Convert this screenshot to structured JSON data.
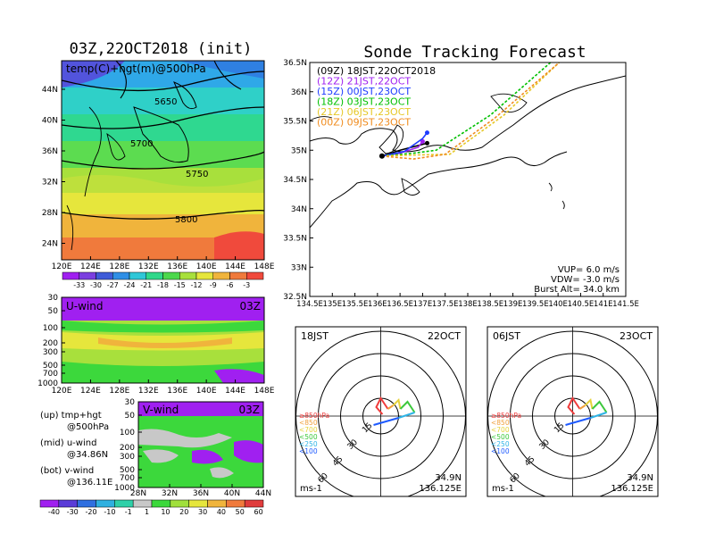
{
  "init_panel": {
    "title": "03Z,22OCT2018 (init)",
    "subtitle": "temp(C)+hgt(m)@500hPa",
    "lat_labels": [
      "44N",
      "40N",
      "36N",
      "32N",
      "28N",
      "24N"
    ],
    "lon_labels": [
      "120E",
      "124E",
      "128E",
      "132E",
      "136E",
      "140E",
      "144E",
      "148E"
    ],
    "contour_labels": [
      "5650",
      "5700",
      "5750",
      "5800"
    ],
    "colorbar_labels": [
      "-33",
      "-30",
      "-27",
      "-24",
      "-21",
      "-18",
      "-15",
      "-12",
      "-9",
      "-6",
      "-3"
    ],
    "colorbar_colors": [
      "#a020f0",
      "#7b3fe0",
      "#3f5bd8",
      "#2f8fe6",
      "#2fc7d8",
      "#2fd88a",
      "#4cd84c",
      "#a8e03c",
      "#e6e63c",
      "#f0b43c",
      "#f07a3c",
      "#f04a3c"
    ]
  },
  "uwind_panel": {
    "label": "U-wind",
    "time": "03Z",
    "y_labels": [
      "30",
      "50",
      "100",
      "200",
      "300",
      "500",
      "700",
      "1000"
    ],
    "x_labels": [
      "120E",
      "124E",
      "128E",
      "132E",
      "136E",
      "140E",
      "144E",
      "148E"
    ]
  },
  "vwind_panel": {
    "label": "V-wind",
    "time": "03Z",
    "y_labels": [
      "30",
      "50",
      "100",
      "200",
      "300",
      "500",
      "700",
      "1000"
    ],
    "x_labels": [
      "28N",
      "32N",
      "36N",
      "40N",
      "44N"
    ]
  },
  "legend": {
    "up_label": "(up) tmp+hgt",
    "up_value": "@500hPa",
    "mid_label": "(mid) u-wind",
    "mid_value": "@34.86N",
    "bot_label": "(bot) v-wind",
    "bot_value": "@136.11E"
  },
  "wind_colorbar": {
    "labels": [
      "-40",
      "-30",
      "-20",
      "-10",
      "-1",
      "1",
      "10",
      "20",
      "30",
      "40",
      "50",
      "60"
    ],
    "colors": [
      "#a020f0",
      "#5a3cd8",
      "#2f6fe0",
      "#2fb0e0",
      "#2fd0a8",
      "#c8c8c8",
      "#3cd83c",
      "#a0e03c",
      "#e6e63c",
      "#f0b43c",
      "#f07a3c",
      "#e03c3c"
    ]
  },
  "tracking": {
    "title": "Sonde Tracking Forecast",
    "y_labels": [
      "36.5N",
      "36N",
      "35.5N",
      "35N",
      "34.5N",
      "34N",
      "33.5N",
      "33N",
      "32.5N"
    ],
    "x_labels": [
      "134.5E",
      "135E",
      "135.5E",
      "136E",
      "136.5E",
      "137E",
      "137.5E",
      "138E",
      "138.5E",
      "139E",
      "139.5E",
      "140E",
      "140.5E",
      "141E",
      "141.5E"
    ],
    "launches": [
      {
        "code": "(09Z)",
        "time": "18JST,22OCT2018",
        "color": "#000000"
      },
      {
        "code": "(12Z)",
        "time": "21JST,22OCT",
        "color": "#a020f0"
      },
      {
        "code": "(15Z)",
        "time": "00JST,23OCT",
        "color": "#1e3cff"
      },
      {
        "code": "(18Z)",
        "time": "03JST,23OCT",
        "color": "#00c000"
      },
      {
        "code": "(21Z)",
        "time": "06JST,23OCT",
        "color": "#e6c828"
      },
      {
        "code": "(00Z)",
        "time": "09JST,23OCT",
        "color": "#f08c1e"
      }
    ],
    "params": {
      "vup": "VUP= 6.0 m/s",
      "vdw": "VDW= -3.0 m/s",
      "burst": "Burst Alt= 34.0 km"
    }
  },
  "hodograph_left": {
    "time_label": "18JST",
    "date_label": "22OCT",
    "ring_labels": [
      "15",
      "30",
      "45",
      "60"
    ],
    "pressure_legend": [
      {
        "text": "≥850hPa",
        "color": "#f03c3c"
      },
      {
        "text": "<850",
        "color": "#f0a03c"
      },
      {
        "text": "<700",
        "color": "#e6d23c"
      },
      {
        "text": "<500",
        "color": "#3cc83c"
      },
      {
        "text": "<250",
        "color": "#2fb4e6"
      },
      {
        "text": "<100",
        "color": "#1e5aff"
      }
    ],
    "unit": "ms-1",
    "lat": "34.9N",
    "lon": "136.125E"
  },
  "hodograph_right": {
    "time_label": "06JST",
    "date_label": "23OCT",
    "ring_labels": [
      "15",
      "30",
      "45",
      "60"
    ],
    "pressure_legend": [
      {
        "text": "≥850hPa",
        "color": "#f03c3c"
      },
      {
        "text": "<850",
        "color": "#f0a03c"
      },
      {
        "text": "<700",
        "color": "#e6d23c"
      },
      {
        "text": "<500",
        "color": "#3cc83c"
      },
      {
        "text": "<250",
        "color": "#2fb4e6"
      },
      {
        "text": "<100",
        "color": "#1e5aff"
      }
    ],
    "unit": "ms-1",
    "lat": "34.9N",
    "lon": "136.125E"
  },
  "chart_data": [
    {
      "type": "heatmap",
      "title": "03Z,22OCT2018 (init)",
      "subtitle": "temp(C)+hgt(m)@500hPa",
      "x_ticks": [
        "120E",
        "124E",
        "128E",
        "132E",
        "136E",
        "140E",
        "144E",
        "148E"
      ],
      "y_ticks": [
        "24N",
        "28N",
        "32N",
        "36N",
        "40N",
        "44N"
      ],
      "contours": [
        5650,
        5700,
        5750,
        5800
      ],
      "colorbar": [
        -33,
        -30,
        -27,
        -24,
        -21,
        -18,
        -15,
        -12,
        -9,
        -6,
        -3
      ]
    },
    {
      "type": "heatmap",
      "title": "U-wind",
      "time": "03Z",
      "x_ticks": [
        "120E",
        "124E",
        "128E",
        "132E",
        "136E",
        "140E",
        "144E",
        "148E"
      ],
      "y_ticks_hPa": [
        30,
        50,
        100,
        200,
        300,
        500,
        700,
        1000
      ]
    },
    {
      "type": "heatmap",
      "title": "V-wind",
      "time": "03Z",
      "x_ticks": [
        "28N",
        "32N",
        "36N",
        "40N",
        "44N"
      ],
      "y_ticks_hPa": [
        30,
        50,
        100,
        200,
        300,
        500,
        700,
        1000
      ],
      "colorbar": [
        -40,
        -30,
        -20,
        -10,
        -1,
        1,
        10,
        20,
        30,
        40,
        50,
        60
      ]
    },
    {
      "type": "line",
      "title": "Sonde Tracking Forecast",
      "xlim": [
        134.5,
        141.5
      ],
      "ylim": [
        32.5,
        36.5
      ],
      "series": [
        {
          "name": "(09Z) 18JST,22OCT2018",
          "x": [
            136.1,
            136.5,
            136.9,
            137.1
          ],
          "y": [
            34.9,
            35.0,
            35.08,
            35.12
          ]
        },
        {
          "name": "(12Z) 21JST,22OCT",
          "x": [
            136.1,
            136.5,
            136.9,
            137.0
          ],
          "y": [
            34.9,
            34.95,
            35.05,
            35.15
          ]
        },
        {
          "name": "(15Z) 00JST,23OCT",
          "x": [
            136.1,
            136.6,
            137.0,
            137.1
          ],
          "y": [
            34.9,
            34.98,
            35.2,
            35.3
          ]
        },
        {
          "name": "(18Z) 03JST,23OCT",
          "x": [
            136.1,
            136.8,
            137.3,
            138.5,
            140.5
          ],
          "y": [
            34.9,
            34.95,
            35.0,
            35.6,
            36.95
          ]
        },
        {
          "name": "(21Z) 06JST,23OCT",
          "x": [
            136.1,
            136.9,
            137.6,
            138.8,
            140.5
          ],
          "y": [
            34.9,
            34.92,
            34.93,
            35.6,
            36.85
          ]
        },
        {
          "name": "(00Z) 09JST,23OCT",
          "x": [
            136.1,
            136.8,
            137.5,
            138.6,
            140.4
          ],
          "y": [
            34.9,
            34.85,
            34.93,
            35.55,
            36.75
          ]
        }
      ],
      "annotations": [
        "VUP= 6.0 m/s",
        "VDW= -3.0 m/s",
        "Burst Alt= 34.0 km"
      ]
    }
  ]
}
